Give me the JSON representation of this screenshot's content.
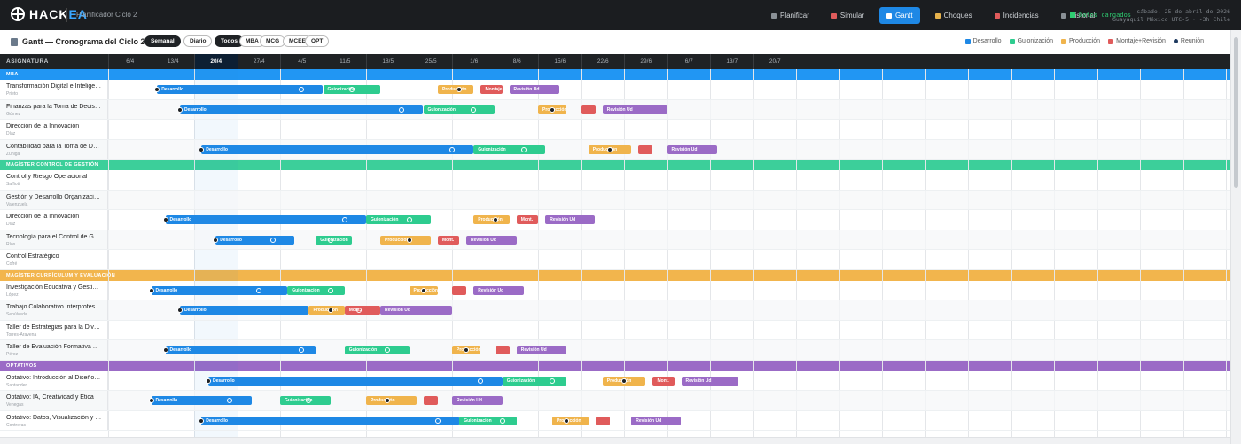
{
  "app": {
    "logo_main": "HACK",
    "logo_accent": "EA",
    "subtitle": "Planificador Ciclo 2"
  },
  "nav": [
    {
      "label": "Planificar",
      "icon": "grid-icon",
      "icon_color": "#8a9096",
      "active": false
    },
    {
      "label": "Simular",
      "icon": "grid-icon",
      "icon_color": "#e05b5b",
      "active": false
    },
    {
      "label": "Gantt",
      "icon": "gantt-icon",
      "icon_color": "#ffffff",
      "active": true
    },
    {
      "label": "Choques",
      "icon": "bolt-icon",
      "icon_color": "#e6b24c",
      "active": false
    },
    {
      "label": "Incidencias",
      "icon": "alert-icon",
      "icon_color": "#e05b5b",
      "active": false
    },
    {
      "label": "Historial",
      "icon": "clock-icon",
      "icon_color": "#8a9096",
      "active": false
    }
  ],
  "status": {
    "loaded": "Datos cargados",
    "clock_line1": "sábado, 25 de abril de 2026",
    "clock_line2": "Guayaquil México UTC-5 · -3h Chile"
  },
  "page": {
    "title": "Gantt — Cronograma del Ciclo 2",
    "view_options": [
      {
        "label": "Semanal",
        "active": true
      },
      {
        "label": "Diario",
        "active": false
      }
    ],
    "filters": [
      {
        "label": "Todos",
        "active": true
      },
      {
        "label": "MBA",
        "active": false
      },
      {
        "label": "MCG",
        "active": false
      },
      {
        "label": "MCEE",
        "active": false
      },
      {
        "label": "OPT",
        "active": false
      }
    ]
  },
  "legend": [
    {
      "label": "Desarrollo",
      "color": "#1e88e5",
      "kind": "square"
    },
    {
      "label": "Guionización",
      "color": "#2ecc8f",
      "kind": "square"
    },
    {
      "label": "Producción",
      "color": "#f0b44c",
      "kind": "square"
    },
    {
      "label": "Montaje+Revisión",
      "color": "#e05b5b",
      "kind": "square"
    },
    {
      "label": "Reunión",
      "color": "#1e3a5f",
      "kind": "dot"
    }
  ],
  "colors": {
    "desarrollo": "#1e88e5",
    "guion": "#2ecc8f",
    "produccion": "#f0b44c",
    "montaje": "#e05b5b",
    "revision": "#9b6bc6"
  },
  "grid": {
    "header_label": "ASIGNATURA",
    "weeks": [
      "6/4",
      "13/4",
      "20/4",
      "27/4",
      "4/5",
      "11/5",
      "18/5",
      "25/5",
      "1/6",
      "8/6",
      "15/6",
      "22/6",
      "29/6",
      "6/7",
      "13/7",
      "20/7"
    ],
    "current_week_index": 2
  },
  "groups": [
    {
      "label": "MBA",
      "color": "#2196f3",
      "rows": [
        {
          "name": "Transformación Digital e Inteligencia de Negocios",
          "prof": "Prieto",
          "bars": [
            {
              "phase": "desarrollo",
              "label": "Desarrollo",
              "start": 1.14,
              "end": 5.0
            },
            {
              "phase": "guion",
              "label": "Guionización",
              "start": 5.0,
              "end": 6.33
            },
            {
              "phase": "produccion",
              "label": "Producción",
              "start": 7.67,
              "end": 8.5
            },
            {
              "phase": "montaje",
              "label": "Montaje",
              "start": 8.67,
              "end": 9.17
            },
            {
              "phase": "revision",
              "label": "Revisión Ud",
              "start": 9.33,
              "end": 10.5
            }
          ],
          "marks": [
            {
              "pos": 1.14,
              "ring": false
            },
            {
              "pos": 4.5,
              "ring": true
            },
            {
              "pos": 5.67,
              "ring": true
            },
            {
              "pos": 8.17,
              "ring": false
            }
          ]
        },
        {
          "name": "Finanzas para la Toma de Decisiones",
          "prof": "Gómez",
          "bars": [
            {
              "phase": "desarrollo",
              "label": "Desarrollo",
              "start": 1.67,
              "end": 7.33
            },
            {
              "phase": "guion",
              "label": "Guionización",
              "start": 7.33,
              "end": 9.0
            },
            {
              "phase": "produccion",
              "label": "Producción",
              "start": 10.0,
              "end": 10.67
            },
            {
              "phase": "montaje",
              "label": "",
              "start": 11.0,
              "end": 11.33
            },
            {
              "phase": "revision",
              "label": "Revisión Ud",
              "start": 11.5,
              "end": 13.0
            }
          ],
          "marks": [
            {
              "pos": 1.67,
              "ring": false
            },
            {
              "pos": 6.83,
              "ring": true
            },
            {
              "pos": 8.5,
              "ring": true
            },
            {
              "pos": 10.33,
              "ring": false
            }
          ]
        },
        {
          "name": "Dirección de la Innovación",
          "prof": "Díaz",
          "bars": [],
          "marks": []
        },
        {
          "name": "Contabilidad para la Toma de Decisiones",
          "prof": "Zúñiga",
          "bars": [
            {
              "phase": "desarrollo",
              "label": "Desarrollo",
              "start": 2.17,
              "end": 8.5
            },
            {
              "phase": "guion",
              "label": "Guionización",
              "start": 8.5,
              "end": 10.17
            },
            {
              "phase": "produccion",
              "label": "Producción",
              "start": 11.17,
              "end": 12.17
            },
            {
              "phase": "montaje",
              "label": "",
              "start": 12.33,
              "end": 12.67
            },
            {
              "phase": "revision",
              "label": "Revisión Ud",
              "start": 13.0,
              "end": 14.17
            }
          ],
          "marks": [
            {
              "pos": 2.17,
              "ring": false
            },
            {
              "pos": 8.0,
              "ring": true
            },
            {
              "pos": 9.67,
              "ring": true
            },
            {
              "pos": 11.67,
              "ring": false
            }
          ]
        }
      ]
    },
    {
      "label": "MAGÍSTER CONTROL DE GESTIÓN",
      "color": "#3ccf9a",
      "rows": [
        {
          "name": "Control y Riesgo Operacional",
          "prof": "Saffioti",
          "bars": [],
          "marks": []
        },
        {
          "name": "Gestión y Desarrollo Organizacional",
          "prof": "Valenzuela",
          "bars": [],
          "marks": []
        },
        {
          "name": "Dirección de la Innovación",
          "prof": "Díaz",
          "bars": [
            {
              "phase": "desarrollo",
              "label": "Desarrollo",
              "start": 1.33,
              "end": 6.0
            },
            {
              "phase": "guion",
              "label": "Guionización",
              "start": 6.0,
              "end": 7.5
            },
            {
              "phase": "produccion",
              "label": "Producción",
              "start": 8.5,
              "end": 9.33
            },
            {
              "phase": "montaje",
              "label": "Mont.",
              "start": 9.5,
              "end": 10.0
            },
            {
              "phase": "revision",
              "label": "Revisión Ud",
              "start": 10.17,
              "end": 11.33
            }
          ],
          "marks": [
            {
              "pos": 1.33,
              "ring": false
            },
            {
              "pos": 5.5,
              "ring": true
            },
            {
              "pos": 7.0,
              "ring": true
            },
            {
              "pos": 9.0,
              "ring": false
            }
          ]
        },
        {
          "name": "Tecnología para el Control de Gestión",
          "prof": "Ríos",
          "bars": [
            {
              "phase": "desarrollo",
              "label": "Desarrollo",
              "start": 2.5,
              "end": 4.33
            },
            {
              "phase": "guion",
              "label": "Guionización",
              "start": 4.83,
              "end": 5.67
            },
            {
              "phase": "produccion",
              "label": "Producción",
              "start": 6.33,
              "end": 7.5
            },
            {
              "phase": "montaje",
              "label": "Mont.",
              "start": 7.67,
              "end": 8.17
            },
            {
              "phase": "revision",
              "label": "Revisión Ud",
              "start": 8.33,
              "end": 9.5
            }
          ],
          "marks": [
            {
              "pos": 2.5,
              "ring": false
            },
            {
              "pos": 3.83,
              "ring": true
            },
            {
              "pos": 5.17,
              "ring": true
            },
            {
              "pos": 7.0,
              "ring": false
            }
          ]
        },
        {
          "name": "Control Estratégico",
          "prof": "Cofré",
          "bars": [],
          "marks": []
        }
      ]
    },
    {
      "label": "MAGÍSTER CURRÍCULUM Y EVALUACIÓN",
      "color": "#f2b54d",
      "rows": [
        {
          "name": "Investigación Educativa y Gestión del Conocimiento",
          "prof": "López",
          "bars": [
            {
              "phase": "desarrollo",
              "label": "Desarrollo",
              "start": 1.0,
              "end": 4.17
            },
            {
              "phase": "guion",
              "label": "Guionización",
              "start": 4.17,
              "end": 5.5
            },
            {
              "phase": "produccion",
              "label": "Producción",
              "start": 7.0,
              "end": 7.67
            },
            {
              "phase": "montaje",
              "label": "",
              "start": 8.0,
              "end": 8.33
            },
            {
              "phase": "revision",
              "label": "Revisión Ud",
              "start": 8.5,
              "end": 9.67
            }
          ],
          "marks": [
            {
              "pos": 1.0,
              "ring": false
            },
            {
              "pos": 3.5,
              "ring": true
            },
            {
              "pos": 5.17,
              "ring": true
            },
            {
              "pos": 7.33,
              "ring": false
            }
          ]
        },
        {
          "name": "Trabajo Colaborativo Interprofesional",
          "prof": "Sepúlveda",
          "bars": [
            {
              "phase": "desarrollo",
              "label": "Desarrollo",
              "start": 1.67,
              "end": 4.67
            },
            {
              "phase": "produccion",
              "label": "Producción",
              "start": 4.67,
              "end": 5.5
            },
            {
              "phase": "montaje",
              "label": "Mont.",
              "start": 5.5,
              "end": 6.33
            },
            {
              "phase": "revision",
              "label": "Revisión Ud",
              "start": 6.33,
              "end": 8.0
            }
          ],
          "marks": [
            {
              "pos": 1.67,
              "ring": false
            },
            {
              "pos": 5.17,
              "ring": false
            },
            {
              "pos": 5.83,
              "ring": true
            }
          ]
        },
        {
          "name": "Taller de Estrategias para la Diversidad",
          "prof": "Torres-Aravena",
          "bars": [],
          "marks": []
        },
        {
          "name": "Taller de Evaluación Formativa y Retroalimentación",
          "prof": "Pérez",
          "bars": [
            {
              "phase": "desarrollo",
              "label": "Desarrollo",
              "start": 1.33,
              "end": 4.83
            },
            {
              "phase": "guion",
              "label": "Guionización",
              "start": 5.5,
              "end": 7.0
            },
            {
              "phase": "produccion",
              "label": "Producción",
              "start": 8.0,
              "end": 8.67
            },
            {
              "phase": "montaje",
              "label": "",
              "start": 9.0,
              "end": 9.33
            },
            {
              "phase": "revision",
              "label": "Revisión Ud",
              "start": 9.5,
              "end": 10.67
            }
          ],
          "marks": [
            {
              "pos": 1.33,
              "ring": false
            },
            {
              "pos": 4.5,
              "ring": true
            },
            {
              "pos": 6.5,
              "ring": true
            },
            {
              "pos": 8.33,
              "ring": false
            }
          ]
        }
      ]
    },
    {
      "label": "OPTATIVOS",
      "color": "#9b6bc6",
      "rows": [
        {
          "name": "Optativo: Introducción al Diseño Instruccional",
          "prof": "Santander",
          "bars": [
            {
              "phase": "desarrollo",
              "label": "Desarrollo",
              "start": 2.33,
              "end": 9.17
            },
            {
              "phase": "guion",
              "label": "Guionización",
              "start": 9.17,
              "end": 10.67
            },
            {
              "phase": "produccion",
              "label": "Producción",
              "start": 11.5,
              "end": 12.5
            },
            {
              "phase": "montaje",
              "label": "Mont.",
              "start": 12.67,
              "end": 13.17
            },
            {
              "phase": "revision",
              "label": "Revisión Ud",
              "start": 13.33,
              "end": 14.67
            }
          ],
          "marks": [
            {
              "pos": 2.33,
              "ring": false
            },
            {
              "pos": 8.67,
              "ring": true
            },
            {
              "pos": 10.33,
              "ring": true
            },
            {
              "pos": 12.0,
              "ring": false
            }
          ]
        },
        {
          "name": "Optativo: IA, Creatividad y Ética",
          "prof": "Venegas",
          "bars": [
            {
              "phase": "desarrollo",
              "label": "Desarrollo",
              "start": 1.0,
              "end": 3.33
            },
            {
              "phase": "guion",
              "label": "Guionización",
              "start": 4.0,
              "end": 5.17
            },
            {
              "phase": "produccion",
              "label": "Producción",
              "start": 6.0,
              "end": 7.17
            },
            {
              "phase": "montaje",
              "label": "",
              "start": 7.33,
              "end": 7.67
            },
            {
              "phase": "revision",
              "label": "Revisión Ud",
              "start": 8.0,
              "end": 9.17
            }
          ],
          "marks": [
            {
              "pos": 1.0,
              "ring": false
            },
            {
              "pos": 2.83,
              "ring": true
            },
            {
              "pos": 4.67,
              "ring": true
            },
            {
              "pos": 6.5,
              "ring": false
            }
          ]
        },
        {
          "name": "Optativo: Datos, Visualización y Narrativa",
          "prof": "Contreras",
          "bars": [
            {
              "phase": "desarrollo",
              "label": "Desarrollo",
              "start": 2.17,
              "end": 8.17
            },
            {
              "phase": "guion",
              "label": "Guionización",
              "start": 8.17,
              "end": 9.5
            },
            {
              "phase": "produccion",
              "label": "Producción",
              "start": 10.33,
              "end": 11.17
            },
            {
              "phase": "montaje",
              "label": "",
              "start": 11.33,
              "end": 11.67
            },
            {
              "phase": "revision",
              "label": "Revisión Ud",
              "start": 12.17,
              "end": 13.33
            }
          ],
          "marks": [
            {
              "pos": 2.17,
              "ring": false
            },
            {
              "pos": 7.67,
              "ring": true
            },
            {
              "pos": 9.17,
              "ring": true
            },
            {
              "pos": 10.67,
              "ring": false
            }
          ]
        }
      ]
    }
  ]
}
